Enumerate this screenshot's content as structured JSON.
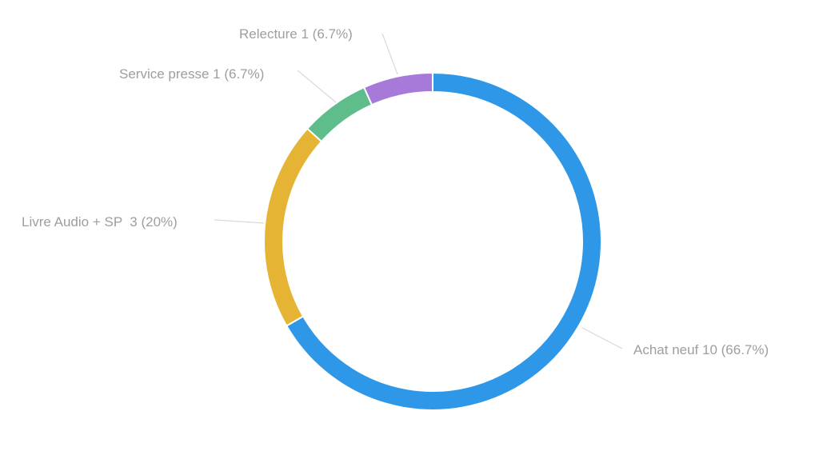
{
  "chart_data": {
    "type": "pie",
    "subtype": "donut",
    "title": "",
    "categories": [
      "Achat neuf",
      "Livre Audio + SP",
      "Service presse",
      "Relecture"
    ],
    "values": [
      10,
      3,
      1,
      1
    ],
    "percentages": [
      66.7,
      20,
      6.7,
      6.7
    ],
    "colors": [
      "#2e97e8",
      "#e6b434",
      "#5fbd8b",
      "#a779d8"
    ],
    "labels": [
      "Achat neuf 10 (66.7%)",
      "Livre Audio + SP  3 (20%)",
      "Service presse 1 (6.7%)",
      "Relecture 1 (6.7%)"
    ],
    "legend": "none",
    "label_position": "outside with leader lines"
  }
}
